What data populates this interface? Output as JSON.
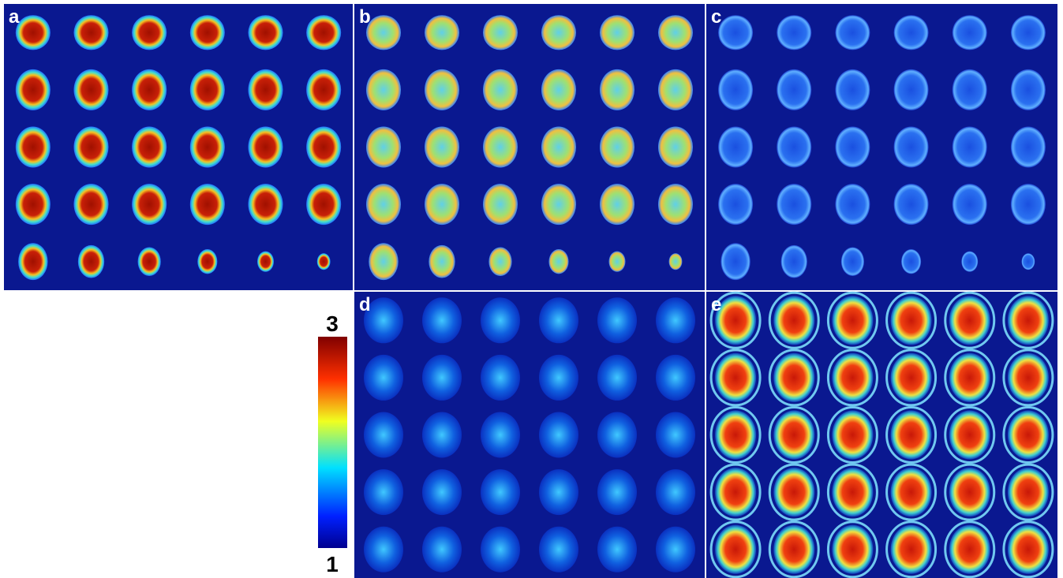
{
  "panels": [
    {
      "label": "a"
    },
    {
      "label": "b"
    },
    {
      "label": "c"
    },
    {
      "label": "d"
    },
    {
      "label": "e"
    }
  ],
  "colorbar": {
    "max": 3,
    "min": 1
  }
}
